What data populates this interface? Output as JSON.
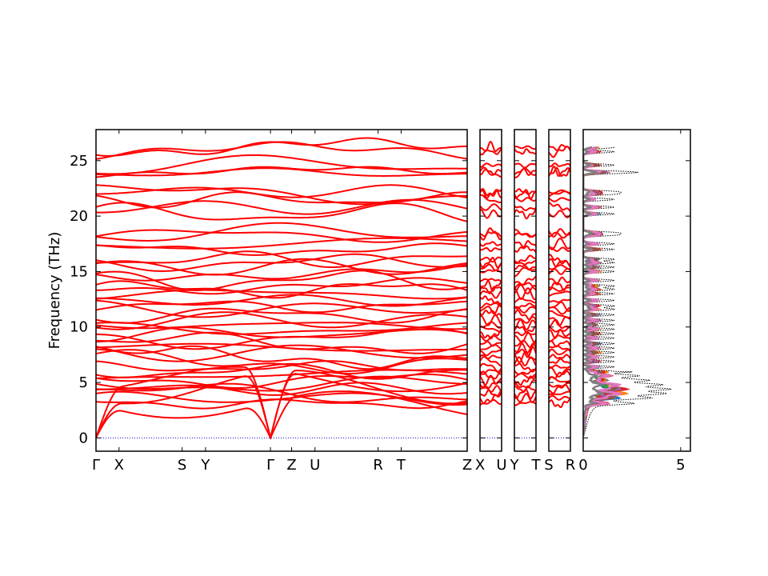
{
  "chart_data": {
    "type": "line",
    "ylabel": "Frequency (THz)",
    "ylim": [
      -1.2,
      27.8
    ],
    "yticks": [
      0,
      5,
      10,
      15,
      20,
      25
    ],
    "band_color": "#ff0000",
    "zero_line_color": "#0000cc",
    "dos_total_color": "#000000",
    "panels": [
      {
        "kind": "band",
        "xlim": [
          0,
          1
        ],
        "ticks": [
          {
            "pos": 0.0,
            "label": "Γ"
          },
          {
            "pos": 0.062,
            "label": "X"
          },
          {
            "pos": 0.232,
            "label": "S"
          },
          {
            "pos": 0.295,
            "label": "Y"
          },
          {
            "pos": 0.47,
            "label": "Γ"
          },
          {
            "pos": 0.527,
            "label": "Z"
          },
          {
            "pos": 0.59,
            "label": "U"
          },
          {
            "pos": 0.76,
            "label": "R"
          },
          {
            "pos": 0.822,
            "label": "T"
          },
          {
            "pos": 1.0,
            "label": "Z"
          }
        ]
      },
      {
        "kind": "band",
        "xlim": [
          0,
          1
        ],
        "ticks": [
          {
            "pos": 0.0,
            "label": "X"
          },
          {
            "pos": 1.0,
            "label": "U"
          }
        ]
      },
      {
        "kind": "band",
        "xlim": [
          0,
          1
        ],
        "ticks": [
          {
            "pos": 0.0,
            "label": "Y"
          },
          {
            "pos": 1.0,
            "label": "T"
          }
        ]
      },
      {
        "kind": "band",
        "xlim": [
          0,
          1
        ],
        "ticks": [
          {
            "pos": 0.0,
            "label": "S"
          },
          {
            "pos": 1.0,
            "label": "R"
          }
        ]
      },
      {
        "kind": "dos",
        "xlim": [
          0,
          5.5
        ],
        "ticks": [
          {
            "pos": 0,
            "label": "0"
          },
          {
            "pos": 5,
            "label": "5"
          }
        ]
      }
    ],
    "band_levels_thz": [
      26.2,
      25.8,
      24.6,
      24.0,
      23.9,
      22.2,
      22.0,
      21.5,
      20.8,
      20.2,
      18.5,
      18.3,
      17.5,
      17.0,
      16.1,
      15.8,
      15.4,
      15.0,
      14.2,
      13.7,
      13.4,
      13.0,
      12.4,
      11.9,
      11.6,
      11.1,
      10.6,
      10.2,
      9.8,
      9.4,
      9.0,
      8.5,
      8.1,
      7.7,
      7.3,
      6.9,
      6.4,
      6.0,
      5.6,
      5.2,
      4.8,
      4.4,
      4.0,
      3.6,
      3.1
    ],
    "pdos_series_colors": [
      "#1f77b4",
      "#ff7f0e",
      "#2ca02c",
      "#d62728",
      "#9467bd",
      "#8c564b",
      "#e377c2",
      "#7f7f7f"
    ]
  }
}
